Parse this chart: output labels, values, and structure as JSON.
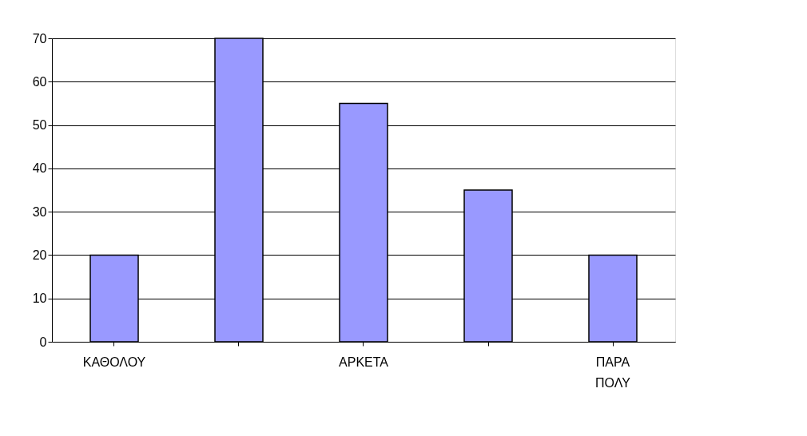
{
  "chart_data": {
    "type": "bar",
    "categories": [
      "ΚΑΘΟΛΟΥ",
      null,
      "ΑΡΚΕΤΑ",
      null,
      "ΠΑΡΑ ΠΟΛΥ"
    ],
    "values": [
      20,
      70,
      55,
      35,
      20
    ],
    "color": "#9999ff",
    "ylim": [
      0,
      70
    ],
    "yticks": [
      0,
      10,
      20,
      30,
      40,
      50,
      60,
      70
    ],
    "grid": "y"
  }
}
